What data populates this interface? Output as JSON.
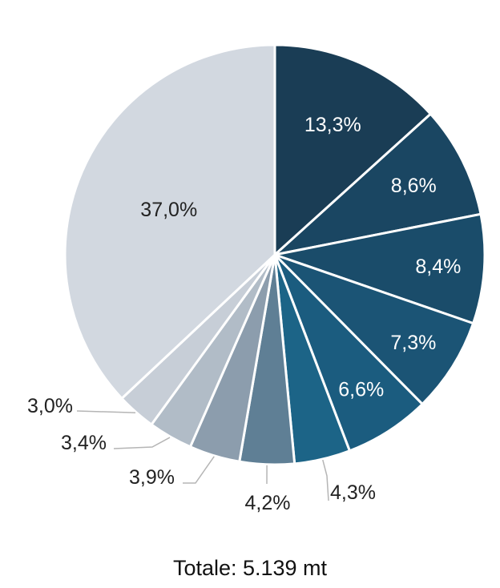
{
  "chart_data": {
    "type": "pie",
    "title": "",
    "start_angle_deg": 0,
    "direction": "clockwise",
    "slices": [
      {
        "label": "13,3%",
        "value": 13.3,
        "color": "#1a3d55",
        "label_color": "#ffffff",
        "label_position": "inside"
      },
      {
        "label": "8,6%",
        "value": 8.6,
        "color": "#1a4662",
        "label_color": "#ffffff",
        "label_position": "inside"
      },
      {
        "label": "8,4%",
        "value": 8.4,
        "color": "#1a4c6a",
        "label_color": "#ffffff",
        "label_position": "inside"
      },
      {
        "label": "7,3%",
        "value": 7.3,
        "color": "#1b5475",
        "label_color": "#ffffff",
        "label_position": "inside"
      },
      {
        "label": "6,6%",
        "value": 6.6,
        "color": "#1b5c7f",
        "label_color": "#ffffff",
        "label_position": "inside"
      },
      {
        "label": "4,3%",
        "value": 4.3,
        "color": "#1c6487",
        "label_color": "#222222",
        "label_position": "outside"
      },
      {
        "label": "4,2%",
        "value": 4.2,
        "color": "#5f7f95",
        "label_color": "#222222",
        "label_position": "outside"
      },
      {
        "label": "3,9%",
        "value": 3.9,
        "color": "#8c9dad",
        "label_color": "#222222",
        "label_position": "outside"
      },
      {
        "label": "3,4%",
        "value": 3.4,
        "color": "#b1bcc7",
        "label_color": "#222222",
        "label_position": "outside"
      },
      {
        "label": "3,0%",
        "value": 3.0,
        "color": "#c7ced7",
        "label_color": "#222222",
        "label_position": "outside"
      },
      {
        "label": "37,0%",
        "value": 37.0,
        "color": "#d2d8e0",
        "label_color": "#222222",
        "label_position": "inside"
      }
    ],
    "leader_line_color": "#b5b5b5",
    "total_label": "Totale: 5.139 mt"
  }
}
